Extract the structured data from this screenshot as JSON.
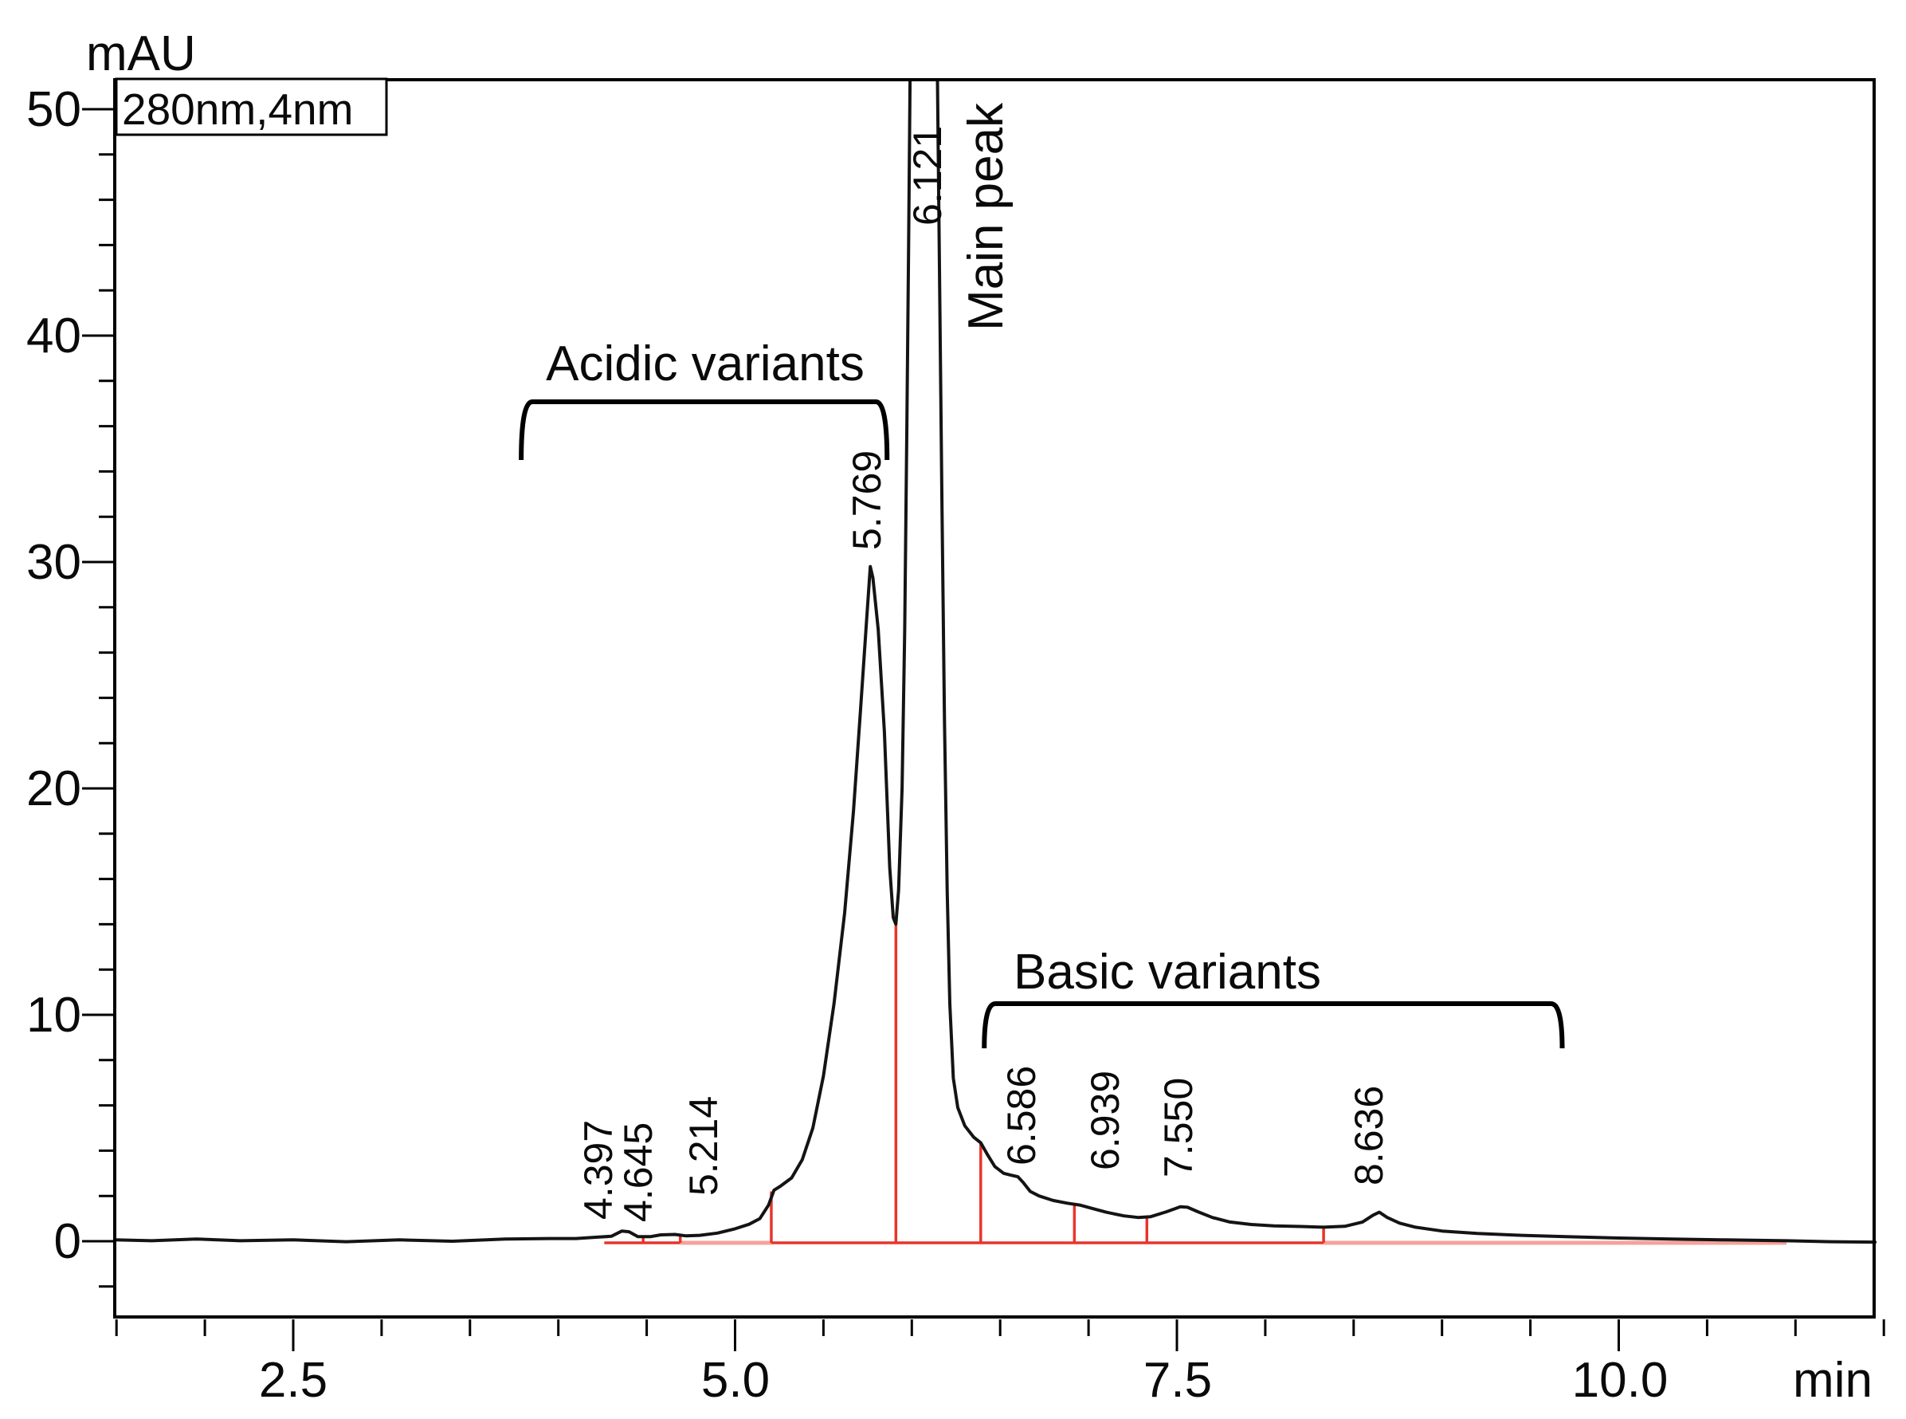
{
  "header": {
    "y_axis_unit": "mAU",
    "x_axis_unit": "min",
    "detector_label": "280nm,4nm"
  },
  "annotations": {
    "acidic_group_label": "Acidic variants",
    "basic_group_label": "Basic variants",
    "main_peak_label": "Main peak"
  },
  "colors": {
    "trace": "#141414",
    "integration": "#e8352a",
    "integration_light": "#f5a29b",
    "axis": "#000000"
  },
  "chart_data": {
    "type": "line",
    "title": "",
    "xlabel": "min",
    "ylabel": "mAU",
    "xlim": [
      1.487,
      11.47
    ],
    "ylim": [
      -3.35,
      51.3
    ],
    "grid": false,
    "legend_position": "none",
    "x_ticks_major": [
      2.5,
      5.0,
      7.5,
      10.0
    ],
    "x_tick_labels": [
      "2.5",
      "5.0",
      "7.5",
      "10.0"
    ],
    "x_minor_step": 0.5,
    "y_ticks_major": [
      0,
      10,
      20,
      30,
      40,
      50
    ],
    "y_tick_labels": [
      "0",
      "10",
      "20",
      "30",
      "40",
      "50"
    ],
    "y_minor_step": 2,
    "peaks": [
      {
        "label": "4.397",
        "rt": 4.397,
        "apex_mAU": 0.45
      },
      {
        "label": "4.645",
        "rt": 4.645,
        "apex_mAU": 0.3
      },
      {
        "label": "5.214",
        "rt": 5.214,
        "apex_mAU": 2.3
      },
      {
        "label": "5.769",
        "rt": 5.769,
        "apex_mAU": 29.8
      },
      {
        "label": "6.121",
        "rt": 6.121,
        "apex_mAU": 51.3,
        "note": "clipped off-scale, main peak"
      },
      {
        "label": "6.586",
        "rt": 6.586,
        "apex_mAU": 2.9
      },
      {
        "label": "6.939",
        "rt": 6.939,
        "apex_mAU": 1.6
      },
      {
        "label": "7.550",
        "rt": 7.55,
        "apex_mAU": 1.55
      },
      {
        "label": "8.636",
        "rt": 8.636,
        "apex_mAU": 1.28
      }
    ],
    "groups": [
      {
        "name": "Acidic variants",
        "from_min": 3.79,
        "to_min": 5.86
      },
      {
        "name": "Basic variants",
        "from_min": 6.41,
        "to_min": 9.68
      }
    ],
    "baseline": {
      "level_mAU": -0.07,
      "from_min": 4.26,
      "to_min": 10.95
    },
    "baseline_segments": [
      {
        "from": 4.26,
        "to": 4.69,
        "style": "red"
      },
      {
        "from": 4.69,
        "to": 5.205,
        "style": "pink"
      },
      {
        "from": 5.205,
        "to": 8.33,
        "style": "red"
      },
      {
        "from": 8.33,
        "to": 10.95,
        "style": "pink"
      }
    ],
    "drop_lines": [
      {
        "t": 4.48,
        "top_mAU": 0.26
      },
      {
        "t": 4.69,
        "top_mAU": 0.3
      },
      {
        "t": 5.205,
        "top_mAU": 2.2
      },
      {
        "t": 5.91,
        "top_mAU": 13.95
      },
      {
        "t": 6.39,
        "top_mAU": 4.3
      },
      {
        "t": 6.92,
        "top_mAU": 1.6
      },
      {
        "t": 7.33,
        "top_mAU": 1.05
      },
      {
        "t": 8.33,
        "top_mAU": 0.6
      }
    ],
    "trace": [
      [
        1.49,
        0.06
      ],
      [
        1.7,
        0.02
      ],
      [
        1.95,
        0.1
      ],
      [
        2.2,
        0.02
      ],
      [
        2.5,
        0.06
      ],
      [
        2.8,
        -0.02
      ],
      [
        3.1,
        0.06
      ],
      [
        3.4,
        0.0
      ],
      [
        3.7,
        0.1
      ],
      [
        3.95,
        0.12
      ],
      [
        4.1,
        0.12
      ],
      [
        4.22,
        0.18
      ],
      [
        4.3,
        0.22
      ],
      [
        4.36,
        0.45
      ],
      [
        4.4,
        0.42
      ],
      [
        4.45,
        0.2
      ],
      [
        4.52,
        0.2
      ],
      [
        4.58,
        0.28
      ],
      [
        4.66,
        0.3
      ],
      [
        4.72,
        0.24
      ],
      [
        4.8,
        0.26
      ],
      [
        4.9,
        0.36
      ],
      [
        5.0,
        0.55
      ],
      [
        5.08,
        0.75
      ],
      [
        5.14,
        1.0
      ],
      [
        5.19,
        1.6
      ],
      [
        5.22,
        2.25
      ],
      [
        5.26,
        2.45
      ],
      [
        5.32,
        2.8
      ],
      [
        5.38,
        3.6
      ],
      [
        5.44,
        5.0
      ],
      [
        5.5,
        7.3
      ],
      [
        5.56,
        10.5
      ],
      [
        5.62,
        14.5
      ],
      [
        5.67,
        19.0
      ],
      [
        5.71,
        23.5
      ],
      [
        5.745,
        27.5
      ],
      [
        5.765,
        29.8
      ],
      [
        5.78,
        29.3
      ],
      [
        5.81,
        27.0
      ],
      [
        5.845,
        22.5
      ],
      [
        5.875,
        16.5
      ],
      [
        5.895,
        14.3
      ],
      [
        5.91,
        14.0
      ],
      [
        5.925,
        15.5
      ],
      [
        5.945,
        20.0
      ],
      [
        5.96,
        27.0
      ],
      [
        5.972,
        36.0
      ],
      [
        5.982,
        44.0
      ],
      [
        5.99,
        51.4
      ],
      [
        6.145,
        51.4
      ],
      [
        6.155,
        44.0
      ],
      [
        6.17,
        33.0
      ],
      [
        6.185,
        23.0
      ],
      [
        6.2,
        15.5
      ],
      [
        6.215,
        10.5
      ],
      [
        6.235,
        7.2
      ],
      [
        6.26,
        5.9
      ],
      [
        6.3,
        5.1
      ],
      [
        6.35,
        4.6
      ],
      [
        6.39,
        4.35
      ],
      [
        6.43,
        3.8
      ],
      [
        6.47,
        3.3
      ],
      [
        6.52,
        3.0
      ],
      [
        6.56,
        2.92
      ],
      [
        6.6,
        2.85
      ],
      [
        6.63,
        2.6
      ],
      [
        6.67,
        2.2
      ],
      [
        6.72,
        2.0
      ],
      [
        6.8,
        1.8
      ],
      [
        6.88,
        1.68
      ],
      [
        6.95,
        1.6
      ],
      [
        7.02,
        1.45
      ],
      [
        7.1,
        1.28
      ],
      [
        7.2,
        1.12
      ],
      [
        7.28,
        1.05
      ],
      [
        7.35,
        1.08
      ],
      [
        7.44,
        1.3
      ],
      [
        7.52,
        1.52
      ],
      [
        7.56,
        1.5
      ],
      [
        7.62,
        1.3
      ],
      [
        7.7,
        1.05
      ],
      [
        7.8,
        0.85
      ],
      [
        7.92,
        0.74
      ],
      [
        8.05,
        0.68
      ],
      [
        8.2,
        0.65
      ],
      [
        8.33,
        0.62
      ],
      [
        8.45,
        0.66
      ],
      [
        8.55,
        0.85
      ],
      [
        8.61,
        1.15
      ],
      [
        8.645,
        1.28
      ],
      [
        8.69,
        1.05
      ],
      [
        8.76,
        0.8
      ],
      [
        8.85,
        0.62
      ],
      [
        9.0,
        0.45
      ],
      [
        9.2,
        0.34
      ],
      [
        9.45,
        0.26
      ],
      [
        9.7,
        0.2
      ],
      [
        10.0,
        0.14
      ],
      [
        10.3,
        0.1
      ],
      [
        10.6,
        0.06
      ],
      [
        10.95,
        0.02
      ],
      [
        11.2,
        -0.02
      ],
      [
        11.45,
        -0.04
      ]
    ]
  }
}
